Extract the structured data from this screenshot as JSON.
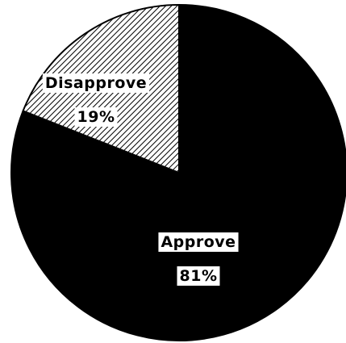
{
  "chart_data": {
    "type": "pie",
    "slices": [
      {
        "label": "Approve",
        "value": 81,
        "value_label": "81%",
        "color": "#000000",
        "fill": "solid"
      },
      {
        "label": "Disapprove",
        "value": 19,
        "value_label": "19%",
        "color": "#000000",
        "fill": "diagonal-hatch"
      }
    ],
    "start_angle": "12 o'clock",
    "direction": "clockwise",
    "legend": "none"
  }
}
